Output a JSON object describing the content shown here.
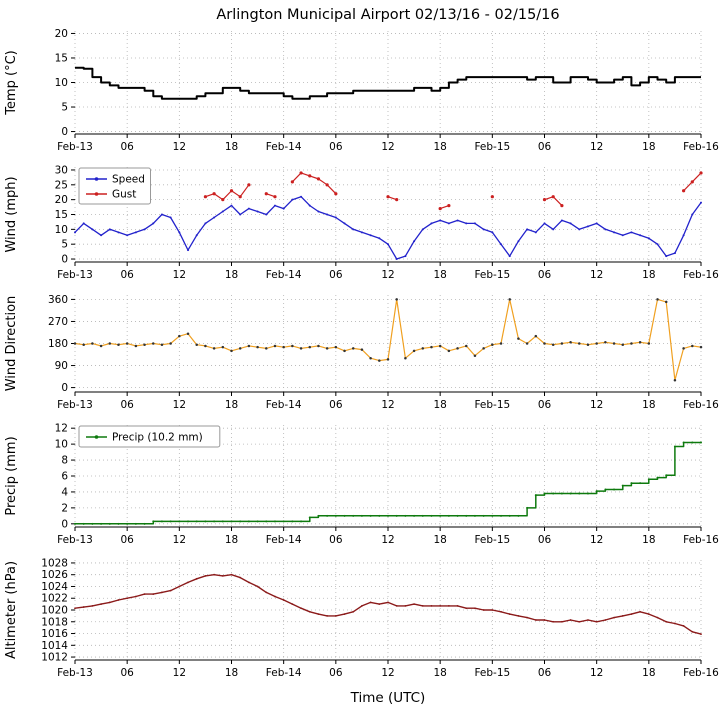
{
  "chart_data": {
    "type": "line",
    "title": "Arlington Municipal Airport 02/13/16 - 02/15/16",
    "xlabel": "Time (UTC)",
    "x_unit": "hours since Feb-13 00:00 UTC",
    "x_range": [
      0,
      72
    ],
    "x_ticks": [
      {
        "h": 0,
        "label": "Feb-13"
      },
      {
        "h": 6,
        "label": "06"
      },
      {
        "h": 12,
        "label": "12"
      },
      {
        "h": 18,
        "label": "18"
      },
      {
        "h": 24,
        "label": "Feb-14"
      },
      {
        "h": 30,
        "label": "06"
      },
      {
        "h": 36,
        "label": "12"
      },
      {
        "h": 42,
        "label": "18"
      },
      {
        "h": 48,
        "label": "Feb-15"
      },
      {
        "h": 54,
        "label": "06"
      },
      {
        "h": 60,
        "label": "12"
      },
      {
        "h": 66,
        "label": "18"
      },
      {
        "h": 72,
        "label": "Feb-16"
      }
    ],
    "hours": [
      0,
      1,
      2,
      3,
      4,
      5,
      6,
      7,
      8,
      9,
      10,
      11,
      12,
      13,
      14,
      15,
      16,
      17,
      18,
      19,
      20,
      21,
      22,
      23,
      24,
      25,
      26,
      27,
      28,
      29,
      30,
      31,
      32,
      33,
      34,
      35,
      36,
      37,
      38,
      39,
      40,
      41,
      42,
      43,
      44,
      45,
      46,
      47,
      48,
      49,
      50,
      51,
      52,
      53,
      54,
      55,
      56,
      57,
      58,
      59,
      60,
      61,
      62,
      63,
      64,
      65,
      66,
      67,
      68,
      69,
      70,
      71,
      72
    ],
    "panels": [
      {
        "id": "temp",
        "ylabel": "Temp (°C)",
        "ylim": [
          -0.5,
          20.5
        ],
        "yticks": [
          0,
          5,
          10,
          15,
          20
        ],
        "legend": false,
        "series": [
          {
            "label": "Temp",
            "color": "#000000",
            "width": 2,
            "step": true,
            "marker": false,
            "y": [
              13,
              12.8,
              11.1,
              10,
              9.4,
              8.9,
              8.9,
              8.9,
              8.3,
              7.2,
              6.7,
              6.7,
              6.7,
              6.7,
              7.2,
              7.8,
              7.8,
              8.9,
              8.9,
              8.3,
              7.8,
              7.8,
              7.8,
              7.8,
              7.2,
              6.7,
              6.7,
              7.2,
              7.2,
              7.8,
              7.8,
              7.8,
              8.3,
              8.3,
              8.3,
              8.3,
              8.3,
              8.3,
              8.3,
              8.9,
              8.9,
              8.3,
              8.9,
              10,
              10.6,
              11.1,
              11.1,
              11.1,
              11.1,
              11.1,
              11.1,
              11.1,
              10.6,
              11.1,
              11.1,
              10,
              10,
              11.1,
              11.1,
              10.6,
              10,
              10,
              10.6,
              11.1,
              9.4,
              10,
              11.1,
              10.6,
              10,
              11.1,
              11.1,
              11.1,
              11.1
            ]
          }
        ]
      },
      {
        "id": "wind",
        "ylabel": "Wind (mph)",
        "ylim": [
          -1,
          31
        ],
        "yticks": [
          0,
          5,
          10,
          15,
          20,
          25,
          30
        ],
        "legend": true,
        "series": [
          {
            "label": "Speed",
            "color": "#2222cc",
            "width": 1.3,
            "step": false,
            "marker": true,
            "marker_size": 1.0,
            "y": [
              9,
              12,
              10,
              8,
              10,
              9,
              8,
              9,
              10,
              12,
              15,
              14,
              9,
              3,
              8,
              12,
              14,
              16,
              18,
              15,
              17,
              16,
              15,
              18,
              17,
              20,
              21,
              18,
              16,
              15,
              14,
              12,
              10,
              9,
              8,
              7,
              5,
              0,
              1,
              6,
              10,
              12,
              13,
              12,
              13,
              12,
              12,
              10,
              9,
              5,
              1,
              6,
              10,
              9,
              12,
              10,
              13,
              12,
              10,
              11,
              12,
              10,
              9,
              8,
              9,
              8,
              7,
              5,
              1,
              2,
              8,
              15,
              19
            ]
          },
          {
            "label": "Gust",
            "color": "#cc2020",
            "width": 1.2,
            "line": "segments",
            "marker": true,
            "marker_size": 1.6,
            "x": [
              15,
              16,
              17,
              18,
              19,
              20,
              22,
              23,
              25,
              26,
              27,
              28,
              29,
              30,
              36,
              37,
              42,
              43,
              48,
              54,
              55,
              56,
              70,
              71,
              72
            ],
            "y": [
              21,
              22,
              20,
              23,
              21,
              25,
              22,
              21,
              26,
              29,
              28,
              27,
              25,
              22,
              21,
              20,
              17,
              18,
              21,
              20,
              21,
              18,
              23,
              26,
              29
            ]
          }
        ]
      },
      {
        "id": "wind-direction",
        "ylabel": "Wind Direction",
        "ylim": [
          -18,
          378
        ],
        "yticks": [
          0,
          90,
          180,
          270,
          360
        ],
        "legend": false,
        "series": [
          {
            "label": "Direction",
            "color": "#f0a020",
            "width": 1.2,
            "step": false,
            "marker": true,
            "marker_size": 1.25,
            "marker_color": "#333333",
            "y": [
              180,
              175,
              180,
              170,
              180,
              175,
              180,
              170,
              175,
              180,
              175,
              180,
              210,
              220,
              175,
              170,
              160,
              165,
              150,
              160,
              170,
              165,
              160,
              170,
              165,
              170,
              160,
              165,
              170,
              160,
              165,
              150,
              160,
              155,
              120,
              110,
              115,
              360,
              120,
              150,
              160,
              165,
              170,
              150,
              160,
              170,
              130,
              160,
              175,
              180,
              360,
              200,
              180,
              210,
              180,
              175,
              180,
              185,
              180,
              175,
              180,
              185,
              180,
              175,
              180,
              185,
              180,
              360,
              350,
              30,
              160,
              170,
              165
            ]
          }
        ]
      },
      {
        "id": "precip",
        "ylabel": "Precip (mm)",
        "ylim": [
          -0.4,
          12.4
        ],
        "yticks": [
          0,
          2,
          4,
          6,
          8,
          10,
          12
        ],
        "legend": true,
        "series": [
          {
            "label": "Precip (10.2 mm)",
            "color": "#0e7a0e",
            "width": 1.5,
            "step": true,
            "marker": true,
            "marker_size": 1.0,
            "y": [
              0,
              0,
              0,
              0,
              0,
              0,
              0,
              0,
              0,
              0.3,
              0.3,
              0.3,
              0.3,
              0.3,
              0.3,
              0.3,
              0.3,
              0.3,
              0.3,
              0.3,
              0.3,
              0.3,
              0.3,
              0.3,
              0.3,
              0.3,
              0.3,
              0.8,
              1,
              1,
              1,
              1,
              1,
              1,
              1,
              1,
              1,
              1,
              1,
              1,
              1,
              1,
              1,
              1,
              1,
              1,
              1,
              1,
              1,
              1,
              1,
              1,
              2,
              3.6,
              3.8,
              3.8,
              3.8,
              3.8,
              3.8,
              3.8,
              4.1,
              4.3,
              4.3,
              4.8,
              5.1,
              5.1,
              5.6,
              5.8,
              6.1,
              9.7,
              10.2,
              10.2,
              10.2
            ]
          }
        ]
      },
      {
        "id": "altimeter",
        "ylabel": "Altimeter (hPa)",
        "ylim": [
          1011.5,
          1028.5
        ],
        "yticks": [
          1012,
          1014,
          1016,
          1018,
          1020,
          1022,
          1024,
          1026,
          1028
        ],
        "legend": false,
        "series": [
          {
            "label": "Altimeter",
            "color": "#8b1a1a",
            "width": 1.4,
            "step": false,
            "marker": true,
            "marker_size": 0.9,
            "y": [
              1020.3,
              1020.5,
              1020.7,
              1021,
              1021.3,
              1021.7,
              1022,
              1022.3,
              1022.7,
              1022.7,
              1023,
              1023.3,
              1024,
              1024.7,
              1025.3,
              1025.8,
              1026,
              1025.8,
              1026,
              1025.5,
              1024.7,
              1024,
              1023,
              1022.3,
              1021.7,
              1021,
              1020.3,
              1019.7,
              1019.3,
              1019,
              1019,
              1019.3,
              1019.7,
              1020.7,
              1021.3,
              1021,
              1021.3,
              1020.7,
              1020.7,
              1021,
              1020.7,
              1020.7,
              1020.7,
              1020.7,
              1020.7,
              1020.3,
              1020.3,
              1020,
              1020,
              1019.7,
              1019.3,
              1019,
              1018.7,
              1018.3,
              1018.3,
              1018,
              1018,
              1018.3,
              1018,
              1018.3,
              1018,
              1018.3,
              1018.7,
              1019,
              1019.3,
              1019.7,
              1019.3,
              1018.7,
              1018,
              1017.7,
              1017.3,
              1016.3,
              1015.9
            ]
          }
        ]
      }
    ]
  }
}
